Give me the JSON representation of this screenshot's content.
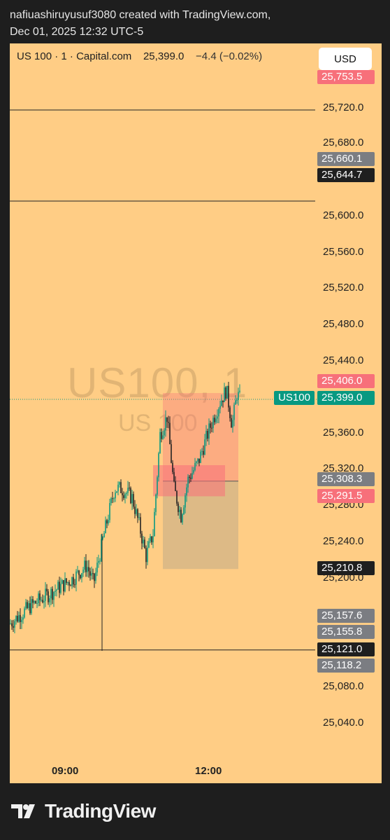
{
  "header": {
    "line1": "nafiuashiruyusuf3080 created with TradingView.com,",
    "line2": "Dec 01, 2025 12:32 UTC-5"
  },
  "legend": {
    "symbol": "US 100",
    "interval": "1",
    "source": "Capital.com",
    "price": "25,399.0",
    "change": "−4.4 (−0.02%)"
  },
  "currency_button": "USD",
  "watermark": {
    "main": "US100, 1",
    "sub": "US 100"
  },
  "price_axis": {
    "ticks": [
      "25,720.0",
      "25,680.0",
      "25,600.0",
      "25,560.0",
      "25,520.0",
      "25,480.0",
      "25,440.0",
      "25,360.0",
      "25,320.0",
      "25,280.0",
      "25,240.0",
      "25,200.0",
      "25,080.0",
      "25,040.0"
    ],
    "labels": [
      {
        "text": "25,753.5",
        "kind": "red"
      },
      {
        "text": "25,660.1",
        "kind": "gray"
      },
      {
        "text": "25,644.7",
        "kind": "dark"
      },
      {
        "text": "25,406.0",
        "kind": "red"
      },
      {
        "text": "25,399.0",
        "kind": "green"
      },
      {
        "text": "25,308.3",
        "kind": "gray"
      },
      {
        "text": "25,291.5",
        "kind": "red"
      },
      {
        "text": "25,210.8",
        "kind": "dark"
      },
      {
        "text": "25,157.6",
        "kind": "gray"
      },
      {
        "text": "25,155.8",
        "kind": "gray"
      },
      {
        "text": "25,121.0",
        "kind": "dark"
      },
      {
        "text": "25,118.2",
        "kind": "gray"
      }
    ]
  },
  "symbol_tag": "US100",
  "time_axis": [
    "09:00",
    "12:00"
  ],
  "horizontal_levels": [
    "25,720.0",
    "25,620.0",
    "25,121.0"
  ],
  "colors": {
    "chart_bg": "#ffcd85",
    "up": "#089981",
    "down": "#222222",
    "red_label": "#f7707a",
    "gray_label": "#7b7d82",
    "dark_label": "#1f1f1f",
    "green_label": "#089981"
  },
  "footer": {
    "brand": "TradingView"
  }
}
